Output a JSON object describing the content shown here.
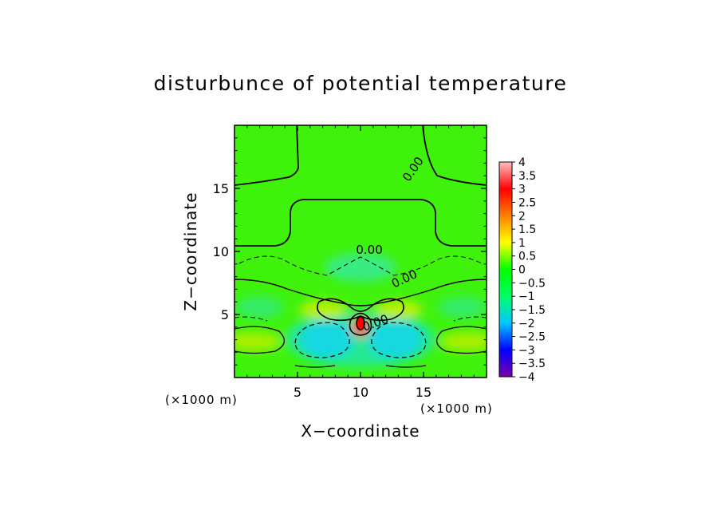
{
  "chart_data": {
    "type": "heatmap",
    "title": "disturbunce of potential temperature",
    "xlabel": "X−coordinate",
    "ylabel": "Z−coordinate",
    "x_unit": "(×1000 m)",
    "y_unit": "(×1000 m)",
    "xlim": [
      0,
      20
    ],
    "ylim": [
      0,
      20
    ],
    "x_ticks": [
      5,
      10,
      15
    ],
    "y_ticks": [
      5,
      10,
      15
    ],
    "x_tick_labels": [
      "5",
      "10",
      "15"
    ],
    "y_tick_labels": [
      "5",
      "10",
      "15"
    ],
    "colorbar": {
      "range": [
        -4,
        4
      ],
      "ticks": [
        4,
        3.5,
        3,
        2.5,
        2,
        1.5,
        1,
        0.5,
        0,
        -0.5,
        -1,
        -1.5,
        -2,
        -2.5,
        -3,
        -3.5,
        -4
      ],
      "tick_labels": [
        "4",
        "3.5",
        "3",
        "2.5",
        "2",
        "1.5",
        "1",
        "0.5",
        "0",
        "−0.5",
        "−1",
        "−1.5",
        "−2",
        "−2.5",
        "−3",
        "−3.5",
        "−4"
      ],
      "colors": [
        "#7a00a8",
        "#0000ff",
        "#00c8ff",
        "#00ff66",
        "#00ff00",
        "#ffff00",
        "#ff8000",
        "#ff0000",
        "#ffc0c0"
      ]
    },
    "contour_labels": [
      {
        "text": "0.00",
        "x": 14.2,
        "y": 16.5,
        "angle": -55
      },
      {
        "text": "0.00",
        "x": 10.7,
        "y": 10.1,
        "angle": 0
      },
      {
        "text": "0.00",
        "x": 13.5,
        "y": 7.8,
        "angle": -25
      },
      {
        "text": "0.00",
        "x": 11.2,
        "y": 4.3,
        "angle": -20
      }
    ]
  }
}
